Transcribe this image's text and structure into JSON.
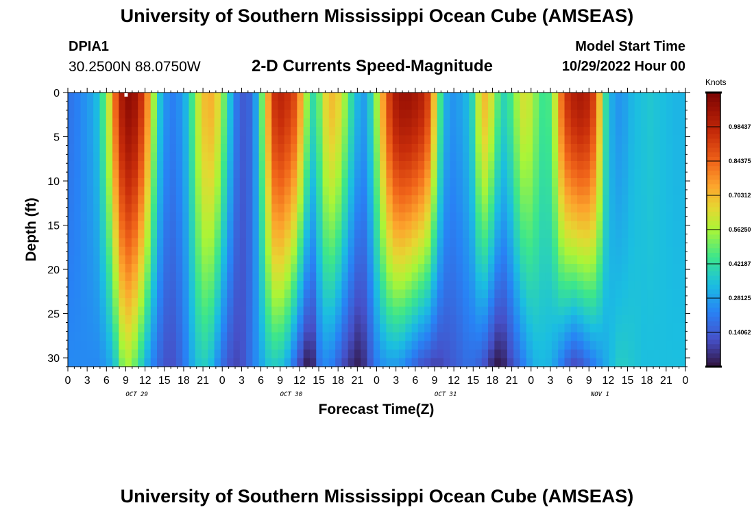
{
  "header": {
    "title": "University of Southern Mississippi Ocean Cube (AMSEAS)",
    "station": "DPIA1",
    "coords": "30.2500N  88.0750W",
    "subtitle": "2-D Currents Speed-Magnitude",
    "model_start_label": "Model Start Time",
    "model_start_value": "10/29/2022 Hour 00"
  },
  "footer": {
    "title": "University of Southern Mississippi Ocean Cube (AMSEAS)"
  },
  "colorbar": {
    "units": "Knots",
    "tick_labels": [
      "0.98437",
      "0.84375",
      "0.70312",
      "0.56250",
      "0.42187",
      "0.28125",
      "0.14062"
    ],
    "tick_values": [
      0.98437,
      0.84375,
      0.70312,
      0.5625,
      0.42187,
      0.28125,
      0.14062
    ],
    "range": [
      0.0,
      1.125
    ]
  },
  "chart_data": {
    "type": "heatmap",
    "title": "2-D Currents Speed-Magnitude",
    "xlabel": "Forecast Time(Z)",
    "ylabel": "Depth (ft)",
    "xlim": [
      0,
      96
    ],
    "ylim": [
      0,
      31
    ],
    "y_inverted": true,
    "x_tick_values": [
      0,
      3,
      6,
      9,
      12,
      15,
      18,
      21,
      24,
      27,
      30,
      33,
      36,
      39,
      42,
      45,
      48,
      51,
      54,
      57,
      60,
      63,
      66,
      69,
      72,
      75,
      78,
      81,
      84,
      87,
      90,
      93,
      96
    ],
    "x_tick_labels": [
      "0",
      "3",
      "6",
      "9",
      "12",
      "15",
      "18",
      "21",
      "0",
      "3",
      "6",
      "9",
      "12",
      "15",
      "18",
      "21",
      "0",
      "3",
      "6",
      "9",
      "12",
      "15",
      "18",
      "21",
      "0",
      "3",
      "6",
      "9",
      "12",
      "15",
      "18",
      "21",
      "0"
    ],
    "y_tick_values": [
      0,
      5,
      10,
      15,
      20,
      25,
      30
    ],
    "y_tick_labels": [
      "0",
      "5",
      "10",
      "15",
      "20",
      "25",
      "30"
    ],
    "day_labels": [
      {
        "x": 12,
        "label": "OCT 29"
      },
      {
        "x": 36,
        "label": "OCT 30"
      },
      {
        "x": 60,
        "label": "OCT 31"
      },
      {
        "x": 84,
        "label": "NOV 1"
      }
    ],
    "colorbar_units": "Knots",
    "value_range": [
      0.0,
      1.125
    ],
    "time_step_hours": 1,
    "depth_step_ft": 1,
    "surface_speed_by_hour": [
      0.2,
      0.22,
      0.25,
      0.28,
      0.33,
      0.45,
      0.62,
      0.85,
      1.02,
      1.08,
      1.05,
      0.95,
      0.78,
      0.55,
      0.35,
      0.25,
      0.22,
      0.25,
      0.32,
      0.45,
      0.6,
      0.7,
      0.72,
      0.65,
      0.5,
      0.34,
      0.2,
      0.14,
      0.16,
      0.28,
      0.5,
      0.75,
      0.95,
      0.98,
      0.95,
      0.9,
      0.75,
      0.55,
      0.42,
      0.5,
      0.65,
      0.7,
      0.66,
      0.55,
      0.42,
      0.32,
      0.28,
      0.38,
      0.55,
      0.75,
      0.92,
      1.02,
      1.05,
      1.05,
      1.03,
      1.0,
      0.92,
      0.7,
      0.45,
      0.3,
      0.26,
      0.28,
      0.32,
      0.4,
      0.6,
      0.7,
      0.62,
      0.48,
      0.4,
      0.45,
      0.55,
      0.62,
      0.6,
      0.52,
      0.45,
      0.46,
      0.6,
      0.82,
      0.95,
      1.0,
      1.02,
      1.0,
      0.92,
      0.7,
      0.42,
      0.3,
      0.26,
      0.28,
      0.32,
      0.34,
      0.35,
      0.36,
      0.35,
      0.34,
      0.33,
      0.32,
      0.32
    ],
    "bottom_speed_by_hour": [
      0.24,
      0.24,
      0.24,
      0.24,
      0.24,
      0.26,
      0.3,
      0.38,
      0.52,
      0.56,
      0.5,
      0.4,
      0.3,
      0.22,
      0.16,
      0.12,
      0.12,
      0.16,
      0.22,
      0.3,
      0.36,
      0.38,
      0.34,
      0.25,
      0.17,
      0.12,
      0.1,
      0.12,
      0.18,
      0.24,
      0.3,
      0.36,
      0.38,
      0.36,
      0.3,
      0.2,
      0.1,
      0.03,
      0.05,
      0.2,
      0.24,
      0.22,
      0.16,
      0.1,
      0.06,
      0.03,
      0.06,
      0.14,
      0.22,
      0.26,
      0.28,
      0.28,
      0.26,
      0.22,
      0.18,
      0.14,
      0.12,
      0.1,
      0.1,
      0.12,
      0.14,
      0.16,
      0.18,
      0.18,
      0.16,
      0.12,
      0.06,
      0.02,
      0.04,
      0.1,
      0.16,
      0.22,
      0.28,
      0.32,
      0.33,
      0.32,
      0.28,
      0.22,
      0.16,
      0.12,
      0.14,
      0.18,
      0.22,
      0.26,
      0.3,
      0.34,
      0.37,
      0.37,
      0.36,
      0.35,
      0.34,
      0.34,
      0.34,
      0.34,
      0.34,
      0.34,
      0.34
    ]
  }
}
